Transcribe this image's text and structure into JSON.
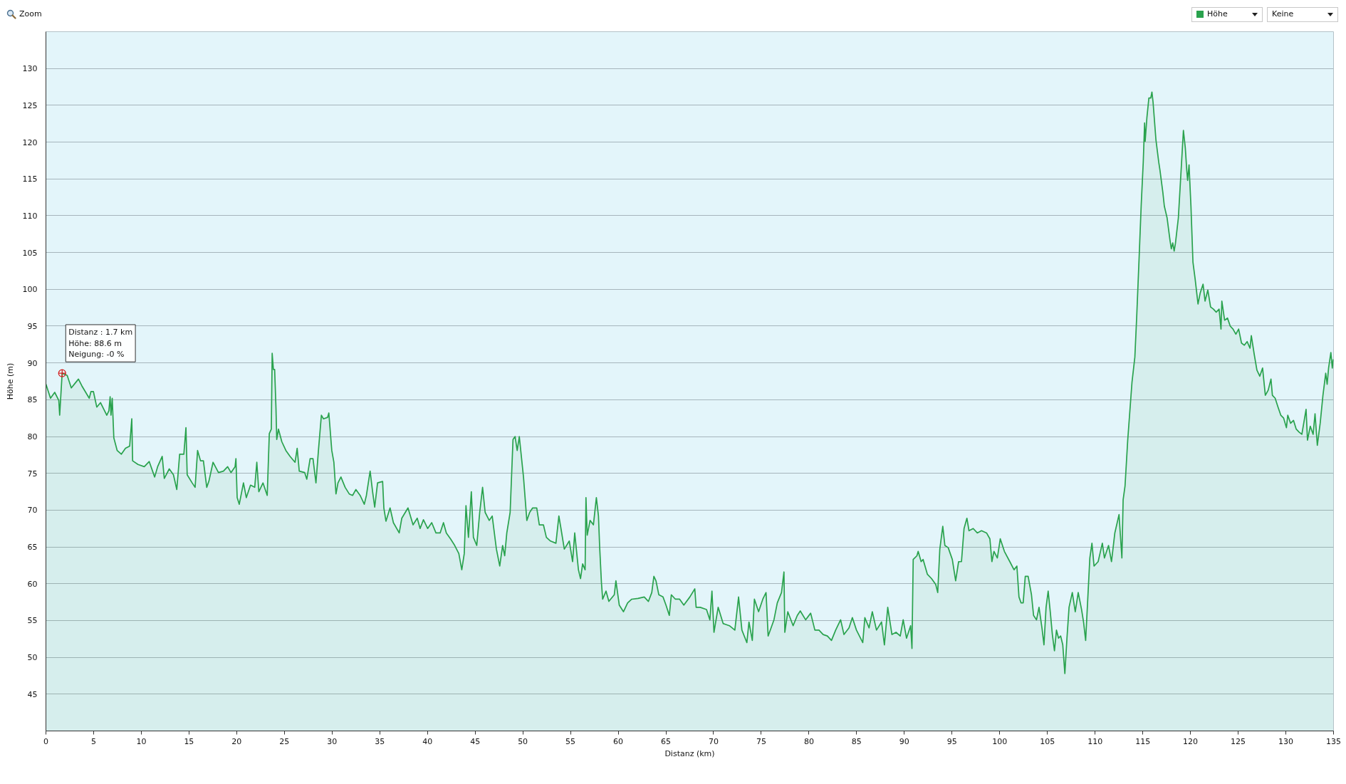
{
  "chart_data": {
    "type": "area",
    "xlabel": "Distanz (km)",
    "ylabel": "Höhe (m)",
    "xlim": [
      0,
      135
    ],
    "ylim": [
      40,
      135
    ],
    "xticks": [
      0,
      5,
      10,
      15,
      20,
      25,
      30,
      35,
      40,
      45,
      50,
      55,
      60,
      65,
      70,
      75,
      80,
      85,
      90,
      95,
      100,
      105,
      110,
      115,
      120,
      125,
      130,
      135
    ],
    "yticks": [
      45,
      50,
      55,
      60,
      65,
      70,
      75,
      80,
      85,
      90,
      95,
      100,
      105,
      110,
      115,
      120,
      125,
      130
    ],
    "grid": "y",
    "legend": "top right",
    "annotations": [
      "Zoom",
      "Keine",
      {
        "text": "Distanz : 1.7 km\nHöhe: 88.6 m\nNeigung: -0 %",
        "x": 1.7,
        "y": 88.6
      }
    ],
    "x": [
      0,
      0.48,
      0.92,
      1.35,
      1.44,
      1.7,
      2.23,
      2.66,
      2.97,
      3.41,
      3.76,
      4.54,
      4.72,
      4.98,
      5.33,
      5.72,
      6.38,
      6.6,
      6.73,
      6.82,
      6.95,
      7.12,
      7.47,
      7.91,
      8.34,
      8.78,
      9.0,
      9.09,
      9.65,
      10.31,
      10.83,
      11.4,
      11.71,
      12.19,
      12.41,
      12.93,
      13.37,
      13.72,
      14.02,
      14.46,
      14.68,
      14.81,
      15.33,
      15.64,
      15.9,
      16.21,
      16.51,
      16.86,
      17.08,
      17.52,
      18.09,
      18.61,
      19.05,
      19.4,
      19.83,
      19.92,
      20.05,
      20.27,
      20.71,
      21.01,
      21.45,
      21.89,
      22.11,
      22.32,
      22.76,
      23.2,
      23.42,
      23.63,
      23.72,
      23.85,
      23.98,
      24.12,
      24.2,
      24.38,
      24.73,
      25.16,
      25.6,
      26.12,
      26.34,
      26.56,
      27.13,
      27.35,
      27.7,
      28.0,
      28.31,
      28.57,
      28.88,
      29.1,
      29.53,
      29.66,
      29.97,
      30.19,
      30.41,
      30.62,
      30.93,
      31.37,
      31.8,
      32.15,
      32.5,
      32.94,
      33.38,
      33.6,
      33.99,
      34.25,
      34.47,
      34.77,
      35.3,
      35.43,
      35.65,
      36.08,
      36.43,
      37.04,
      37.31,
      37.96,
      38.49,
      38.93,
      39.23,
      39.58,
      40.02,
      40.45,
      40.89,
      41.33,
      41.68,
      41.98,
      42.42,
      42.86,
      43.29,
      43.6,
      43.86,
      44.04,
      44.3,
      44.6,
      44.82,
      45.17,
      45.48,
      45.78,
      46.05,
      46.48,
      46.79,
      47.23,
      47.58,
      47.88,
      48.1,
      48.32,
      48.67,
      48.97,
      49.19,
      49.41,
      49.63,
      50.07,
      50.42,
      50.72,
      51.03,
      51.46,
      51.73,
      52.16,
      52.47,
      52.9,
      53.47,
      53.78,
      54.0,
      54.35,
      54.87,
      55.22,
      55.44,
      55.83,
      56.05,
      56.27,
      56.53,
      56.62,
      56.75,
      57.05,
      57.4,
      57.71,
      57.93,
      58.06,
      58.24,
      58.37,
      58.72,
      59.02,
      59.59,
      59.76,
      60.11,
      60.55,
      60.99,
      61.42,
      62.08,
      62.73,
      63.17,
      63.52,
      63.74,
      63.96,
      64.26,
      64.7,
      65.01,
      65.36,
      65.57,
      66.0,
      66.44,
      66.88,
      67.51,
      68.03,
      68.17,
      68.6,
      69.26,
      69.61,
      69.83,
      70.04,
      70.48,
      71.0,
      71.66,
      72.23,
      72.62,
      72.97,
      73.49,
      73.71,
      74.06,
      74.28,
      74.72,
      75.16,
      75.5,
      75.72,
      76.03,
      76.33,
      76.68,
      77.12,
      77.38,
      77.47,
      77.78,
      78.34,
      78.78,
      79.09,
      79.65,
      80.18,
      80.62,
      81.05,
      81.49,
      81.93,
      82.36,
      82.8,
      83.32,
      83.67,
      84.2,
      84.55,
      84.98,
      85.64,
      85.86,
      86.3,
      86.64,
      87.08,
      87.61,
      87.91,
      88.26,
      88.7,
      89.13,
      89.57,
      89.88,
      90.23,
      90.66,
      90.8,
      90.93,
      91.32,
      91.45,
      91.76,
      91.97,
      92.41,
      92.85,
      93.29,
      93.5,
      93.72,
      94.03,
      94.25,
      94.6,
      95.03,
      95.38,
      95.69,
      95.99,
      96.26,
      96.56,
      96.78,
      97.22,
      97.65,
      98.09,
      98.62,
      98.97,
      99.18,
      99.4,
      99.75,
      100.06,
      100.49,
      101.06,
      101.5,
      101.8,
      102.02,
      102.24,
      102.46,
      102.68,
      102.98,
      103.33,
      103.55,
      103.86,
      104.12,
      104.43,
      104.64,
      104.86,
      105.08,
      105.3,
      105.52,
      105.74,
      105.95,
      106.17,
      106.39,
      106.61,
      106.83,
      107.05,
      107.27,
      107.61,
      107.92,
      108.23,
      108.58,
      108.79,
      109.01,
      109.23,
      109.45,
      109.67,
      109.89,
      110.32,
      110.76,
      110.98,
      111.41,
      111.72,
      112.07,
      112.51,
      112.81,
      112.94,
      113.14,
      113.42,
      113.87,
      114.17,
      114.37,
      114.61,
      114.84,
      115.05,
      115.19,
      115.25,
      115.43,
      115.64,
      115.84,
      115.96,
      116.08,
      116.38,
      116.67,
      116.8,
      117.11,
      117.26,
      117.55,
      117.85,
      117.99,
      118.14,
      118.29,
      118.43,
      118.73,
      119.02,
      119.26,
      119.46,
      119.61,
      119.7,
      119.85,
      120.05,
      120.26,
      120.49,
      120.79,
      121.02,
      121.32,
      121.53,
      121.82,
      122.11,
      122.41,
      122.7,
      123.0,
      123.2,
      123.29,
      123.58,
      123.88,
      124.17,
      124.46,
      124.76,
      125.05,
      125.35,
      125.65,
      125.94,
      126.24,
      126.38,
      126.68,
      126.97,
      127.27,
      127.56,
      127.85,
      128.15,
      128.44,
      128.59,
      128.88,
      129.18,
      129.47,
      129.77,
      130.06,
      130.2,
      130.5,
      130.8,
      131.09,
      131.39,
      131.68,
      132.12,
      132.27,
      132.56,
      132.86,
      133.06,
      133.3,
      133.6,
      133.89,
      134.18,
      134.33,
      134.48,
      134.72,
      134.87,
      134.97
    ],
    "series": [
      {
        "name": "Höhe",
        "color": "#29a24d",
        "values": [
          87.1,
          85.2,
          86.0,
          84.9,
          82.9,
          88.6,
          88.3,
          86.6,
          87.1,
          87.8,
          86.9,
          85.2,
          86.1,
          86.1,
          84.0,
          84.6,
          82.9,
          83.5,
          85.4,
          82.9,
          85.2,
          79.8,
          78.1,
          77.6,
          78.4,
          78.7,
          82.4,
          76.7,
          76.2,
          75.9,
          76.6,
          74.5,
          75.9,
          77.3,
          74.3,
          75.6,
          74.8,
          72.8,
          77.6,
          77.6,
          81.2,
          74.8,
          73.7,
          73.1,
          78.1,
          76.7,
          76.7,
          73.1,
          73.9,
          76.5,
          75.1,
          75.3,
          75.9,
          75.1,
          75.9,
          77.0,
          71.7,
          70.8,
          73.7,
          71.7,
          73.4,
          73.1,
          76.5,
          72.5,
          73.7,
          72.0,
          80.4,
          81.0,
          91.3,
          89.1,
          89.1,
          83.8,
          79.6,
          81.0,
          79.3,
          78.1,
          77.3,
          76.5,
          78.4,
          75.3,
          75.1,
          74.2,
          77.0,
          77.0,
          73.7,
          78.1,
          82.9,
          82.4,
          82.6,
          83.2,
          78.1,
          76.5,
          72.2,
          73.7,
          74.5,
          73.1,
          72.2,
          72.0,
          72.8,
          72.0,
          70.8,
          72.0,
          75.3,
          72.5,
          70.4,
          73.7,
          73.9,
          70.3,
          68.5,
          70.3,
          68.3,
          66.9,
          68.9,
          70.3,
          68.0,
          68.9,
          67.5,
          68.7,
          67.5,
          68.3,
          66.9,
          66.9,
          68.3,
          66.9,
          66.1,
          65.2,
          64.1,
          61.9,
          64.1,
          70.6,
          66.3,
          72.5,
          66.3,
          65.2,
          69.7,
          73.1,
          69.7,
          68.6,
          69.2,
          64.7,
          62.4,
          65.2,
          63.8,
          66.9,
          69.7,
          79.6,
          80.0,
          78.1,
          80.0,
          74.5,
          68.6,
          69.7,
          70.3,
          70.3,
          68.0,
          68.0,
          66.3,
          65.8,
          65.5,
          69.2,
          67.5,
          64.7,
          65.8,
          63.0,
          66.9,
          61.9,
          60.7,
          62.7,
          61.9,
          71.7,
          66.6,
          68.6,
          68.0,
          71.7,
          69.2,
          64.9,
          60.2,
          57.9,
          59.0,
          57.6,
          58.5,
          60.4,
          57.1,
          56.2,
          57.4,
          57.9,
          58.0,
          58.2,
          57.6,
          58.8,
          61.0,
          60.4,
          58.5,
          58.2,
          57.1,
          55.7,
          58.5,
          57.9,
          57.9,
          57.1,
          58.2,
          59.3,
          56.8,
          56.8,
          56.5,
          55.1,
          59.0,
          53.4,
          56.8,
          54.6,
          54.3,
          53.7,
          58.2,
          53.7,
          52.0,
          54.8,
          52.3,
          57.9,
          56.2,
          57.9,
          58.8,
          52.9,
          54.0,
          55.1,
          57.4,
          58.8,
          61.6,
          53.4,
          56.2,
          54.3,
          55.7,
          56.3,
          55.1,
          56.0,
          53.7,
          53.7,
          53.1,
          52.9,
          52.3,
          53.7,
          55.1,
          53.1,
          54.0,
          55.4,
          53.7,
          52.0,
          55.4,
          54.0,
          56.2,
          53.7,
          54.8,
          51.7,
          56.8,
          53.1,
          53.4,
          52.9,
          55.1,
          52.6,
          54.3,
          51.2,
          63.3,
          63.8,
          64.4,
          63.0,
          63.3,
          61.3,
          60.7,
          59.9,
          58.8,
          64.7,
          67.8,
          65.2,
          64.9,
          63.3,
          60.4,
          63.0,
          63.0,
          67.5,
          68.9,
          67.2,
          67.5,
          66.9,
          67.2,
          66.9,
          66.1,
          63.0,
          64.4,
          63.5,
          66.1,
          64.4,
          63.0,
          61.9,
          62.4,
          58.2,
          57.4,
          57.4,
          61.0,
          61.0,
          58.5,
          55.7,
          55.1,
          56.8,
          54.0,
          51.7,
          56.8,
          59.0,
          56.2,
          53.1,
          50.9,
          53.7,
          52.6,
          52.9,
          51.7,
          47.8,
          52.6,
          56.8,
          58.8,
          56.2,
          58.8,
          56.5,
          54.8,
          52.3,
          57.9,
          63.5,
          65.5,
          62.4,
          63.0,
          65.5,
          63.5,
          65.2,
          63.0,
          66.9,
          69.4,
          63.5,
          71.4,
          73.3,
          79.5,
          87.4,
          90.8,
          96.5,
          104.1,
          111.6,
          117.3,
          122.6,
          120.1,
          123.3,
          126.0,
          126.0,
          126.8,
          125.4,
          120.3,
          117.3,
          116.2,
          113.1,
          111.3,
          109.7,
          106.7,
          105.5,
          106.3,
          105.2,
          106.3,
          109.7,
          116.2,
          121.6,
          119.2,
          116.2,
          114.8,
          116.9,
          111.3,
          103.7,
          101.4,
          98.0,
          99.5,
          100.7,
          98.4,
          99.9,
          97.6,
          97.3,
          96.9,
          97.3,
          94.6,
          98.4,
          95.8,
          96.1,
          95.0,
          94.6,
          93.9,
          94.6,
          92.7,
          92.4,
          92.9,
          92.0,
          93.7,
          91.2,
          89.0,
          88.2,
          89.3,
          85.6,
          86.3,
          87.8,
          85.6,
          85.2,
          84.0,
          82.9,
          82.5,
          81.2,
          82.9,
          81.8,
          82.2,
          81.0,
          80.6,
          80.3,
          83.7,
          79.5,
          81.4,
          80.3,
          83.1,
          78.8,
          81.8,
          85.6,
          88.6,
          87.1,
          89.3,
          91.4,
          89.3,
          90.5
        ]
      }
    ]
  }
}
